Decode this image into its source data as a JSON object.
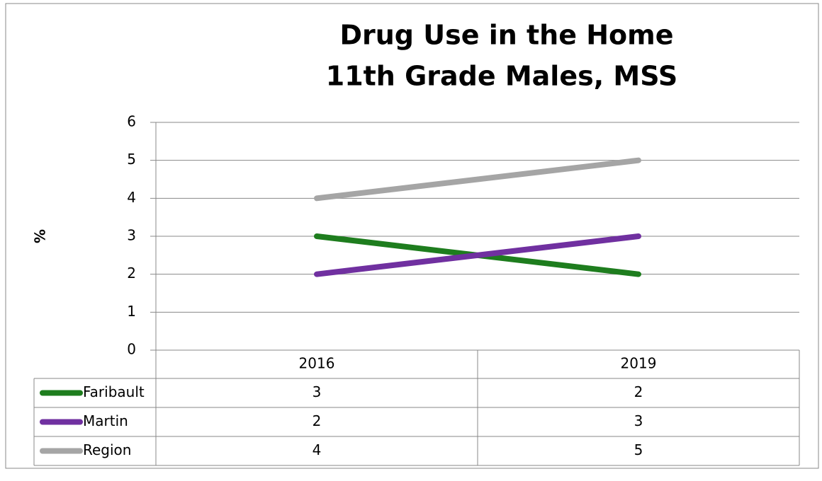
{
  "chart_data": {
    "type": "line",
    "title": [
      "Drug Use in the Home",
      "11th Grade Males, MSS"
    ],
    "ylabel": "%",
    "categories": [
      "2016",
      "2019"
    ],
    "series": [
      {
        "name": "Faribault",
        "color": "#1e7d1e",
        "values": [
          3,
          2
        ]
      },
      {
        "name": "Martin",
        "color": "#7030a0",
        "values": [
          2,
          3
        ]
      },
      {
        "name": "Region",
        "color": "#a5a5a5",
        "values": [
          4,
          5
        ]
      }
    ],
    "ylim": [
      0,
      6
    ],
    "yticks": [
      0,
      1,
      2,
      3,
      4,
      5,
      6
    ],
    "grid": true,
    "data_table": true
  }
}
